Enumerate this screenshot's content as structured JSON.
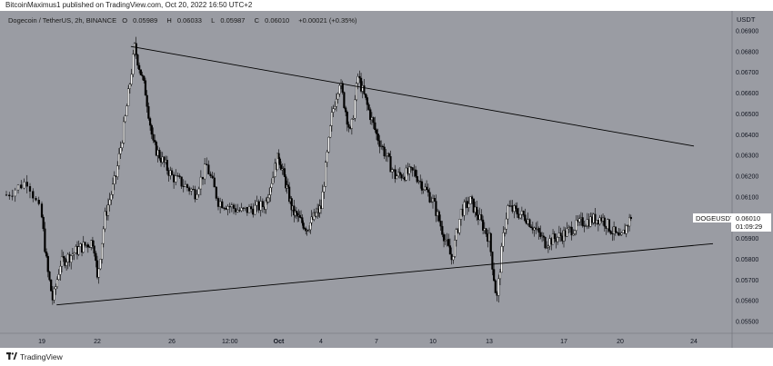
{
  "header": {
    "publisher_text": "BitcoinMaximus1 published on TradingView.com, Oct 20, 2022 16:50 UTC+2"
  },
  "legend": {
    "title": "Dogecoin / TetherUS, 2h, BINANCE",
    "o_label": "O",
    "o_value": "0.05989",
    "h_label": "H",
    "h_value": "0.06033",
    "l_label": "L",
    "l_value": "0.05987",
    "c_label": "C",
    "c_value": "0.06010",
    "change": "+0.00021 (+0.35%)"
  },
  "price_scale": {
    "currency": "USDT",
    "symbol_tag": "DOGEUSDT",
    "last_price": "0.06010",
    "countdown": "01:09:29"
  },
  "footer": {
    "brand": "TradingView"
  },
  "colors": {
    "plot_background": "#9a9ca3",
    "candle_up": "#ffffff",
    "candle_down": "#000000",
    "trendline": "#000000",
    "axis_text": "#131722"
  },
  "chart_data": {
    "type": "candlestick",
    "title": "Dogecoin / TetherUS, 2h, BINANCE",
    "ylabel": "USDT",
    "ylim": [
      0.0545,
      0.0698
    ],
    "y_ticks": [
      "0.06900",
      "0.06800",
      "0.06700",
      "0.06600",
      "0.06500",
      "0.06400",
      "0.06300",
      "0.06200",
      "0.06100",
      "0.05900",
      "0.05800",
      "0.05700",
      "0.05600",
      "0.05500"
    ],
    "x_ticks": [
      "19",
      "22",
      "26",
      "12:00",
      "Oct",
      "4",
      "7",
      "10",
      "13",
      "17",
      "20",
      "24"
    ],
    "grid": false,
    "price_path": [
      [
        "18",
        0.0611
      ],
      [
        "18.6",
        0.0618
      ],
      [
        "19",
        0.06
      ],
      [
        "19.3",
        0.0575
      ],
      [
        "19.6",
        0.056
      ],
      [
        "20",
        0.0578
      ],
      [
        "21",
        0.0585
      ],
      [
        "21.8",
        0.0589
      ],
      [
        "22",
        0.057
      ],
      [
        "22.4",
        0.06
      ],
      [
        "23",
        0.062
      ],
      [
        "23.5",
        0.0648
      ],
      [
        "24",
        0.0682
      ],
      [
        "24.6",
        0.066
      ],
      [
        "25",
        0.0635
      ],
      [
        "26",
        0.062
      ],
      [
        "27",
        0.0612
      ],
      [
        "27.5",
        0.0625
      ],
      [
        "28",
        0.0608
      ],
      [
        "29",
        0.0603
      ],
      [
        "30",
        0.0606
      ],
      [
        "Oct 1",
        0.063
      ],
      [
        "Oct 2",
        0.0603
      ],
      [
        "Oct 3",
        0.0595
      ],
      [
        "Oct 4",
        0.0605
      ],
      [
        "Oct 4.6",
        0.065
      ],
      [
        "Oct 5",
        0.0666
      ],
      [
        "Oct 5.6",
        0.064
      ],
      [
        "Oct 6",
        0.0668
      ],
      [
        "Oct 7",
        0.064
      ],
      [
        "Oct 8",
        0.062
      ],
      [
        "Oct 9",
        0.0622
      ],
      [
        "Oct 10",
        0.0608
      ],
      [
        "Oct 11",
        0.058
      ],
      [
        "Oct 11.5",
        0.0603
      ],
      [
        "Oct 12",
        0.0608
      ],
      [
        "Oct 13",
        0.059
      ],
      [
        "Oct 13.4",
        0.056
      ],
      [
        "Oct 13.8",
        0.0595
      ],
      [
        "Oct 14",
        0.0605
      ],
      [
        "Oct 15",
        0.06
      ],
      [
        "Oct 16",
        0.0588
      ],
      [
        "Oct 17",
        0.0592
      ],
      [
        "Oct 18",
        0.0598
      ],
      [
        "Oct 19",
        0.06
      ],
      [
        "Oct 20",
        0.0589
      ],
      [
        "Oct 20.6",
        0.0601
      ]
    ],
    "trendlines": [
      {
        "from": [
          "23.8",
          0.06825
        ],
        "to": [
          "Oct 24",
          0.06345
        ]
      },
      {
        "from": [
          "19.8",
          0.0558
        ],
        "to": [
          "Oct 25",
          0.05875
        ]
      }
    ],
    "last_value": 0.0601
  }
}
